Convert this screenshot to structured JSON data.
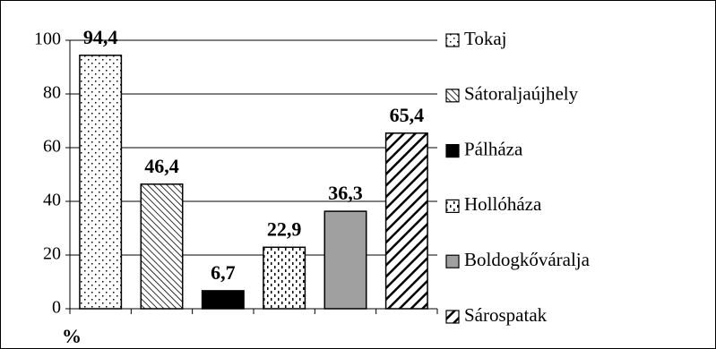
{
  "chart_data": {
    "type": "bar",
    "y_label": "%",
    "ylim": [
      0,
      100
    ],
    "yticks": [
      0,
      20,
      40,
      60,
      80,
      100
    ],
    "grid": true,
    "series": [
      {
        "name": "Tokaj",
        "pattern": "dots",
        "values": [
          94.4
        ],
        "value_labels": [
          "94,4"
        ]
      },
      {
        "name": "Sátoraljaújhely",
        "pattern": "backslash",
        "values": [
          46.4
        ],
        "value_labels": [
          "46,4"
        ]
      },
      {
        "name": "Pálháza",
        "pattern": "solid",
        "values": [
          6.7
        ],
        "value_labels": [
          "6,7"
        ]
      },
      {
        "name": "Hollóháza",
        "pattern": "dashes",
        "values": [
          22.9
        ],
        "value_labels": [
          "22,9"
        ]
      },
      {
        "name": "Boldogkőváralja",
        "pattern": "gray",
        "values": [
          36.3
        ],
        "value_labels": [
          "36,3"
        ]
      },
      {
        "name": "Sárospatak",
        "pattern": "slash",
        "values": [
          65.4
        ],
        "value_labels": [
          "65,4"
        ]
      }
    ]
  }
}
